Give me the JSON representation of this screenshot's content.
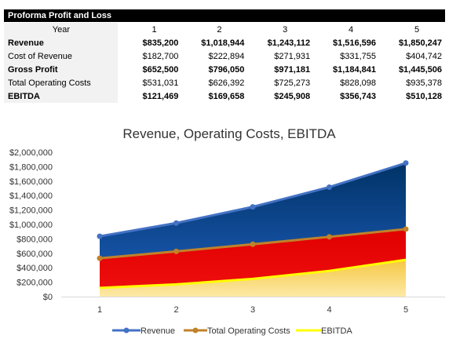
{
  "sheet": {
    "title": "Proforma Profit and Loss",
    "header": {
      "label": "Year",
      "years": [
        "1",
        "2",
        "3",
        "4",
        "5"
      ]
    },
    "rows": [
      {
        "label": "Revenue",
        "bold": true,
        "values": [
          "$835,200",
          "$1,018,944",
          "$1,243,112",
          "$1,516,596",
          "$1,850,247"
        ]
      },
      {
        "label": "Cost of Revenue",
        "bold": false,
        "values": [
          "$182,700",
          "$222,894",
          "$271,931",
          "$331,755",
          "$404,742"
        ]
      },
      {
        "label": "Gross Profit",
        "bold": true,
        "values": [
          "$652,500",
          "$796,050",
          "$971,181",
          "$1,184,841",
          "$1,445,506"
        ]
      },
      {
        "label": "Total Operating Costs",
        "bold": false,
        "values": [
          "$531,031",
          "$626,392",
          "$725,273",
          "$828,098",
          "$935,378"
        ]
      },
      {
        "label": "EBITDA",
        "bold": true,
        "values": [
          "$121,469",
          "$169,658",
          "$245,908",
          "$356,743",
          "$510,128"
        ]
      }
    ]
  },
  "chart_data": {
    "type": "area",
    "title": "Revenue, Operating Costs, EBITDA",
    "x": [
      1,
      2,
      3,
      4,
      5
    ],
    "ylim": [
      0,
      2000000
    ],
    "yticks": [
      "$0",
      "$200,000",
      "$400,000",
      "$600,000",
      "$800,000",
      "$1,000,000",
      "$1,200,000",
      "$1,400,000",
      "$1,600,000",
      "$1,800,000",
      "$2,000,000"
    ],
    "grid": false,
    "legend": "bottom",
    "series": [
      {
        "name": "Revenue",
        "values": [
          835200,
          1018944,
          1243112,
          1516596,
          1850247
        ],
        "line_color": "#4472c4",
        "fill_top": "#003366",
        "fill_bottom": "#1f5fbf"
      },
      {
        "name": "Total Operating Costs",
        "values": [
          531031,
          626392,
          725273,
          828098,
          935378
        ],
        "line_color": "#c0822a",
        "fill_top": "#e00000",
        "fill_bottom": "#f01010"
      },
      {
        "name": "EBITDA",
        "values": [
          121469,
          169658,
          245908,
          356743,
          510128
        ],
        "line_color": "#ffff00",
        "fill_top": "#f5c842",
        "fill_bottom": "#fde9a8"
      }
    ]
  }
}
